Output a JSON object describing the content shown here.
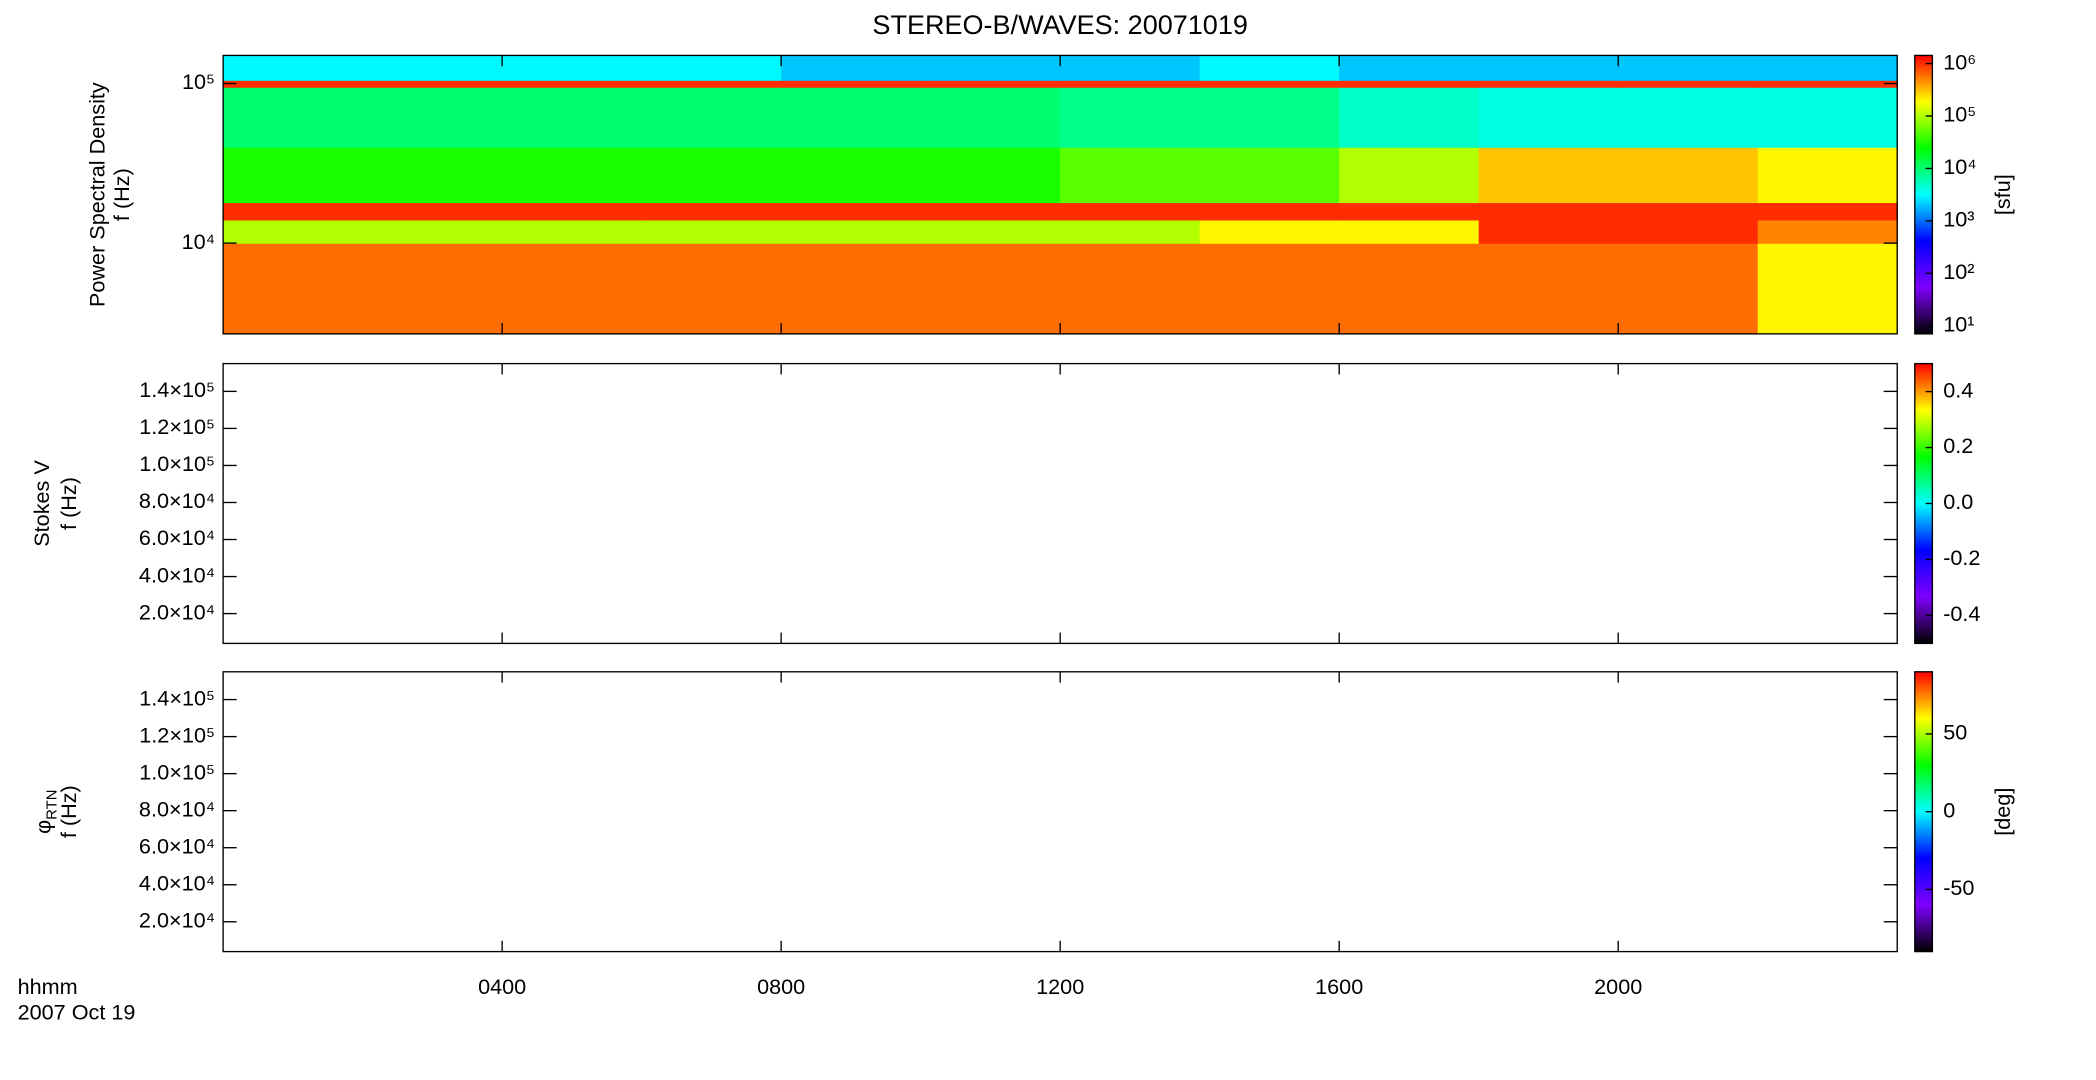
{
  "title": "STEREO-B/WAVES: 20071019",
  "x_label": [
    "hhmm",
    "2007 Oct 19"
  ],
  "xlim": [
    0,
    24
  ],
  "xticks": [
    {
      "value": 4,
      "label": "0400"
    },
    {
      "value": 8,
      "label": "0800"
    },
    {
      "value": 12,
      "label": "1200"
    },
    {
      "value": 16,
      "label": "1600"
    },
    {
      "value": 20,
      "label": "2000"
    }
  ],
  "colormap": [
    "#000000",
    "#7f00ff",
    "#0000ff",
    "#00ffff",
    "#00ff00",
    "#ffff00",
    "#ff0000"
  ],
  "chart_data": [
    {
      "type": "heatmap",
      "ylabel": [
        "Power Spectral Density",
        "f (Hz)"
      ],
      "log_y": true,
      "ylim": [
        2700,
        150000
      ],
      "yticks": [
        {
          "value": 10000,
          "label": "10⁴"
        },
        {
          "value": 100000,
          "label": "10⁵"
        }
      ],
      "x_bins": [
        0,
        2,
        4,
        6,
        8,
        10,
        12,
        14,
        16,
        18,
        20,
        22,
        24
      ],
      "y_bins": [
        2700,
        10000,
        14000,
        18000,
        40000,
        95000,
        105000,
        150000
      ],
      "z": [
        [
          600000,
          600000,
          600000,
          600000,
          600000,
          600000,
          600000,
          600000,
          600000,
          600000,
          600000,
          200000
        ],
        [
          100000,
          100000,
          100000,
          100000,
          100000,
          100000,
          100000,
          200000,
          200000,
          1000000,
          1000000,
          500000
        ],
        [
          1000000,
          1000000,
          1000000,
          1000000,
          1000000,
          1000000,
          1000000,
          1000000,
          1000000,
          1000000,
          1000000,
          1000000
        ],
        [
          30000,
          30000,
          30000,
          30000,
          30000,
          30000,
          50000,
          50000,
          100000,
          300000,
          300000,
          200000
        ],
        [
          10000,
          10000,
          10000,
          10000,
          10000,
          10000,
          8000,
          8000,
          5000,
          4000,
          4000,
          4000
        ],
        [
          1000000,
          1000000,
          1000000,
          1000000,
          1000000,
          1000000,
          1000000,
          1000000,
          1000000,
          1000000,
          1000000,
          1000000
        ],
        [
          3000,
          3000,
          3000,
          3000,
          2000,
          2000,
          2000,
          3000,
          2000,
          2000,
          2000,
          2000
        ]
      ],
      "colorbar": {
        "label": "[sfu]",
        "log": true,
        "lim": [
          7,
          1430000
        ],
        "ticks": [
          {
            "value": 10,
            "label": "10¹"
          },
          {
            "value": 100,
            "label": "10²"
          },
          {
            "value": 1000,
            "label": "10³"
          },
          {
            "value": 10000,
            "label": "10⁴"
          },
          {
            "value": 100000,
            "label": "10⁵"
          },
          {
            "value": 1000000,
            "label": "10⁶"
          }
        ]
      }
    },
    {
      "type": "heatmap",
      "ylabel": [
        "Stokes V",
        "f (Hz)"
      ],
      "log_y": false,
      "ylim": [
        3900,
        155000
      ],
      "yticks": [
        {
          "value": 20000,
          "label": "2.0×10⁴"
        },
        {
          "value": 40000,
          "label": "4.0×10⁴"
        },
        {
          "value": 60000,
          "label": "6.0×10⁴"
        },
        {
          "value": 80000,
          "label": "8.0×10⁴"
        },
        {
          "value": 100000,
          "label": "1.0×10⁵"
        },
        {
          "value": 120000,
          "label": "1.2×10⁵"
        },
        {
          "value": 140000,
          "label": "1.4×10⁵"
        }
      ],
      "colorbar": {
        "log": false,
        "lim": [
          -0.5,
          0.5
        ],
        "ticks": [
          -0.4,
          -0.2,
          {
            "value": 0,
            "label": "0.0"
          },
          0.2,
          0.4
        ]
      }
    },
    {
      "type": "heatmap",
      "ylabel": [
        {
          "symbol": "φ",
          "sub": "RTN"
        },
        "f (Hz)"
      ],
      "log_y": false,
      "ylim": [
        3900,
        155000
      ],
      "yticks": [
        {
          "value": 20000,
          "label": "2.0×10⁴"
        },
        {
          "value": 40000,
          "label": "4.0×10⁴"
        },
        {
          "value": 60000,
          "label": "6.0×10⁴"
        },
        {
          "value": 80000,
          "label": "8.0×10⁴"
        },
        {
          "value": 100000,
          "label": "1.0×10⁵"
        },
        {
          "value": 120000,
          "label": "1.2×10⁵"
        },
        {
          "value": 140000,
          "label": "1.4×10⁵"
        }
      ],
      "colorbar": {
        "label": "[deg]",
        "log": false,
        "lim": [
          -90,
          90
        ],
        "ticks": [
          -50,
          0,
          50
        ]
      }
    }
  ]
}
